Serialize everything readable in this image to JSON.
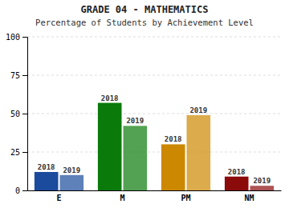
{
  "chart_data": {
    "type": "bar",
    "title": "GRADE 04 - MATHEMATICS",
    "subtitle": "Percentage of Students by Achievement Level",
    "categories": [
      "E",
      "M",
      "PM",
      "NM"
    ],
    "series": [
      {
        "name": "2018",
        "values": [
          12,
          57,
          30,
          9
        ],
        "colors": [
          "#1a4b9c",
          "#0a7a0a",
          "#cc8800",
          "#8b0a0a"
        ]
      },
      {
        "name": "2019",
        "values": [
          10,
          42,
          49,
          3
        ],
        "colors": [
          "#1a4b9c",
          "#0a7a0a",
          "#cc8800",
          "#8b0a0a"
        ]
      }
    ],
    "ylim": [
      0,
      100
    ],
    "yticks": [
      0,
      25,
      50,
      75,
      100
    ],
    "grid": true
  }
}
